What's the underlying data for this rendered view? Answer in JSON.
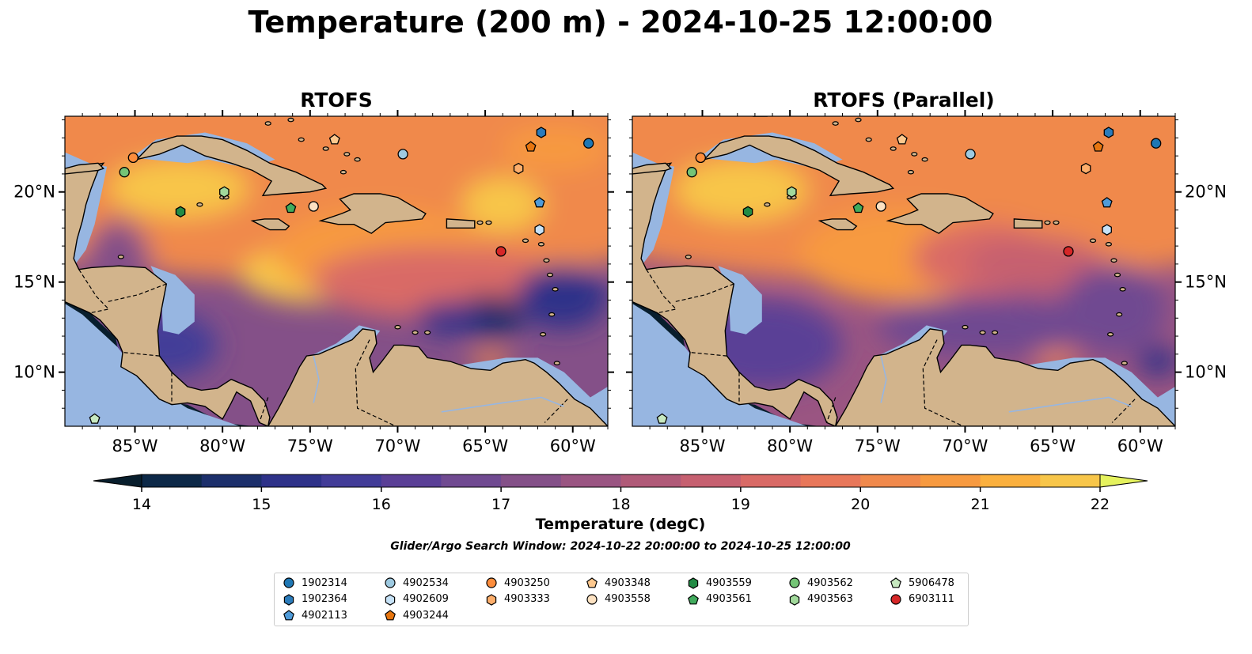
{
  "title": "Temperature (200 m) - 2024-10-25 12:00:00",
  "panels": [
    {
      "id": "left",
      "subtitle": "RTOFS"
    },
    {
      "id": "right",
      "subtitle": "RTOFS (Parallel)"
    }
  ],
  "map": {
    "lon_range": [
      -89,
      -58
    ],
    "lat_range": [
      7,
      24.2
    ],
    "x_ticks": [
      "85°W",
      "80°W",
      "75°W",
      "70°W",
      "65°W",
      "60°W"
    ],
    "y_ticks": [
      "10°N",
      "15°N",
      "20°N"
    ],
    "land_color": "#d2b48c",
    "shelf_color": "#97b6e1"
  },
  "colorbar": {
    "label": "Temperature (degC)",
    "min": 14,
    "max": 22,
    "step": 0.5,
    "ticks": [
      "14",
      "15",
      "16",
      "17",
      "18",
      "19",
      "20",
      "21",
      "22"
    ],
    "extend": "both",
    "colors": [
      "#081e2d",
      "#0d2948",
      "#1c2f6b",
      "#2e3289",
      "#423c98",
      "#5a3f96",
      "#704a91",
      "#845088",
      "#9a5582",
      "#b05a78",
      "#c66070",
      "#d96a66",
      "#e8775a",
      "#f0894c",
      "#f79a40",
      "#fbb03e",
      "#f8c64a",
      "#eede56",
      "#e5f25e"
    ]
  },
  "search_window": "Glider/Argo Search Window: 2024-10-22 20:00:00 to 2024-10-25 12:00:00",
  "floats": [
    {
      "id": "1902314",
      "shape": "circle",
      "color": "#1f77b4",
      "lon": -59.1,
      "lat": 22.7
    },
    {
      "id": "1902364",
      "shape": "hexagon",
      "color": "#2b7bba",
      "lon": -61.8,
      "lat": 23.3
    },
    {
      "id": "4902113",
      "shape": "pentagon",
      "color": "#4f9bd9",
      "lon": -61.9,
      "lat": 19.4
    },
    {
      "id": "4902534",
      "shape": "circle",
      "color": "#9ecae1",
      "lon": -69.7,
      "lat": 22.1
    },
    {
      "id": "4902609",
      "shape": "hexagon",
      "color": "#c6e2f7",
      "lon": -61.9,
      "lat": 17.9
    },
    {
      "id": "4903244",
      "shape": "pentagon",
      "color": "#e6750f",
      "lon": -62.4,
      "lat": 22.5
    },
    {
      "id": "4903250",
      "shape": "circle",
      "color": "#fd8d3c",
      "lon": -85.1,
      "lat": 21.9
    },
    {
      "id": "4903333",
      "shape": "hexagon",
      "color": "#fdae6b",
      "lon": -63.1,
      "lat": 21.3
    },
    {
      "id": "4903348",
      "shape": "pentagon",
      "color": "#fdc88e",
      "lon": -73.6,
      "lat": 22.9
    },
    {
      "id": "4903558",
      "shape": "circle",
      "color": "#fde2c2",
      "lon": -74.8,
      "lat": 19.2
    },
    {
      "id": "4903559",
      "shape": "hexagon",
      "color": "#238b45",
      "lon": -82.4,
      "lat": 18.9
    },
    {
      "id": "4903561",
      "shape": "pentagon",
      "color": "#41ab5d",
      "lon": -76.1,
      "lat": 19.1
    },
    {
      "id": "4903562",
      "shape": "circle",
      "color": "#74c476",
      "lon": -85.6,
      "lat": 21.1
    },
    {
      "id": "4903563",
      "shape": "hexagon",
      "color": "#a1d99b",
      "lon": -79.9,
      "lat": 20.0
    },
    {
      "id": "5906478",
      "shape": "pentagon",
      "color": "#c7e9c0",
      "lon": -87.3,
      "lat": 7.4
    },
    {
      "id": "6903111",
      "shape": "circle",
      "color": "#d62728",
      "lon": -64.1,
      "lat": 16.7
    }
  ]
}
